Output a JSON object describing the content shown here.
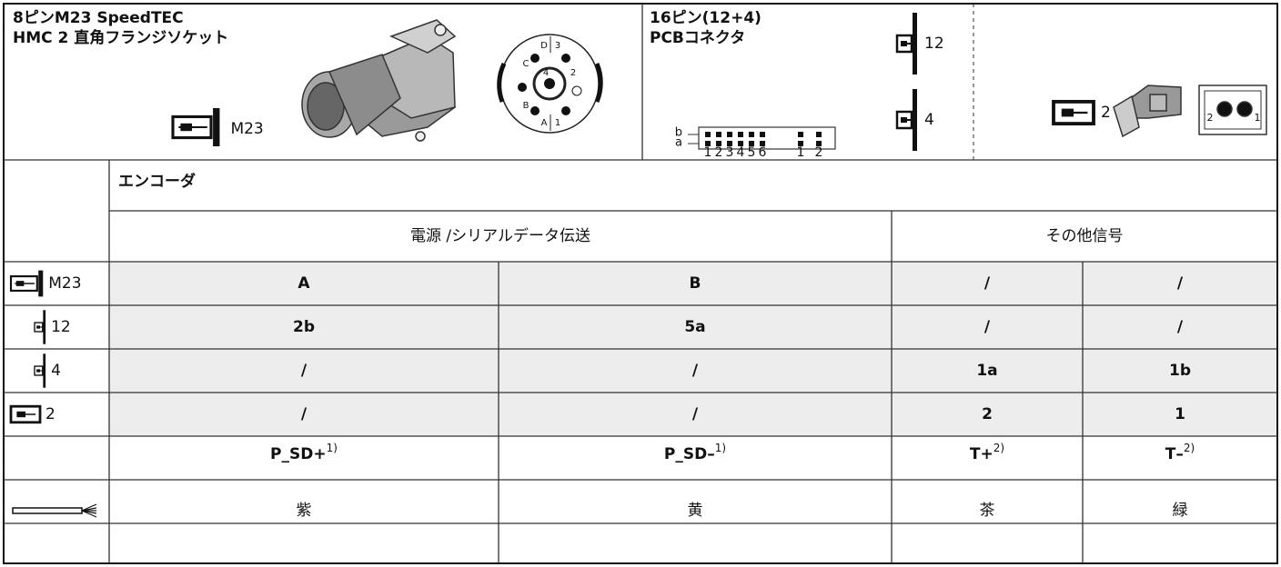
{
  "header": {
    "socket": {
      "title": [
        "8ピンM23 SpeedTEC",
        "HMC 2 直角フランジソケット"
      ],
      "icon_label": "M23",
      "pins": [
        "D",
        "3",
        "C",
        "4",
        "2",
        "B",
        "A",
        "1"
      ]
    },
    "pcb": {
      "title": [
        "16ピン(12+4)",
        "PCBコネクタ"
      ],
      "row_labels": [
        "b",
        "a"
      ],
      "pin_numbers": [
        "1",
        "2",
        "3",
        "4",
        "5",
        "6",
        "1",
        "2"
      ],
      "icon_labels": [
        "12",
        "4"
      ]
    },
    "plug": {
      "icon_label": "2",
      "pins": [
        "2",
        "1"
      ]
    }
  },
  "table": {
    "group": "エンコーダ",
    "subgroups": [
      "電源 /シリアルデータ伝送",
      "その他信号"
    ],
    "rows": [
      {
        "icon_label": "M23",
        "cells": [
          "A",
          "B",
          "/",
          "/"
        ]
      },
      {
        "icon_label": "12",
        "cells": [
          "2b",
          "5a",
          "/",
          "/"
        ]
      },
      {
        "icon_label": "4",
        "cells": [
          "/",
          "/",
          "1a",
          "1b"
        ]
      },
      {
        "icon_label": "2",
        "cells": [
          "/",
          "/",
          "2",
          "1"
        ]
      }
    ],
    "signals": [
      {
        "name": "P_SD+",
        "note": "1)"
      },
      {
        "name": "P_SD–",
        "note": "1)"
      },
      {
        "name": "T+",
        "note": "2)"
      },
      {
        "name": "T–",
        "note": "2)"
      }
    ],
    "wire_colors": [
      "紫",
      "黄",
      "茶",
      "緑"
    ]
  }
}
